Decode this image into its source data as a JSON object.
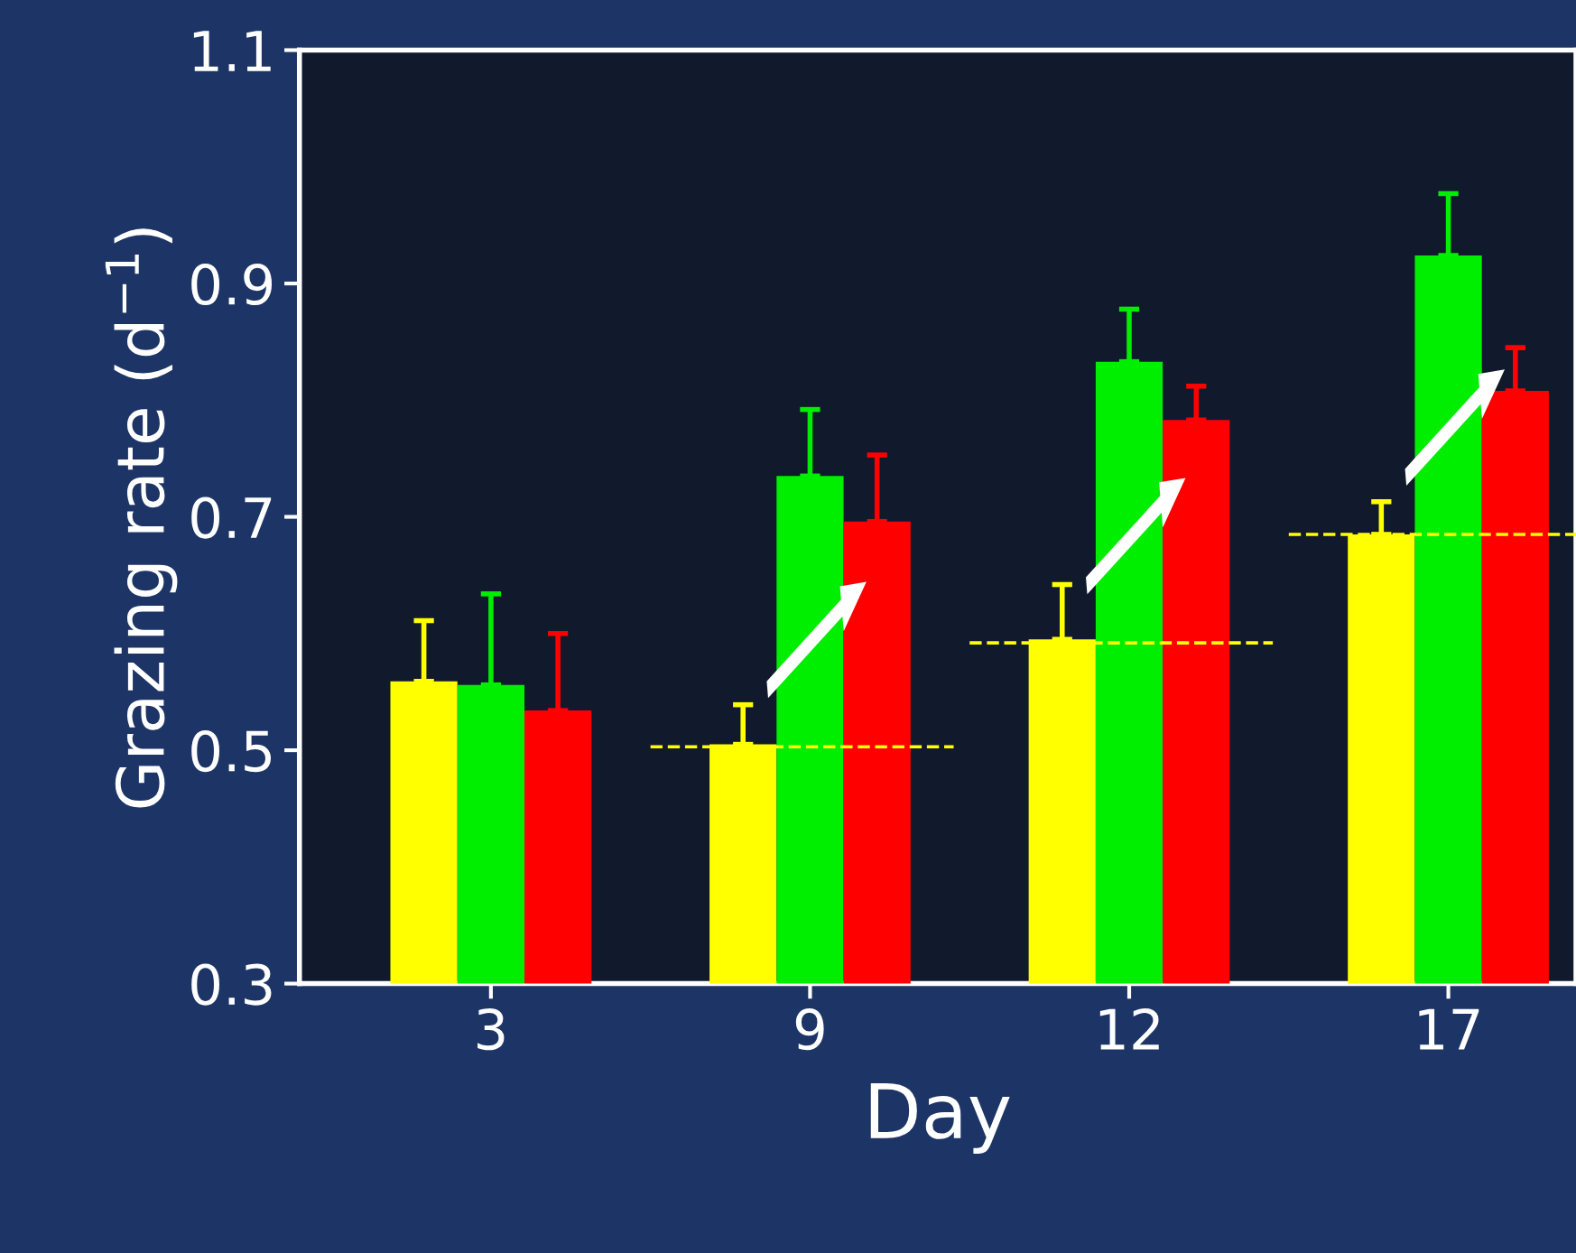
{
  "chart_data": {
    "type": "bar",
    "xlabel": "Day",
    "ylabel": "Grazing rate (d$^{−1}$)",
    "categories": [
      "3",
      "9",
      "12",
      "17"
    ],
    "series": [
      {
        "color": "#ffff00",
        "values": [
          0.559,
          0.505,
          0.595,
          0.685
        ],
        "errors": [
          0.052,
          0.034,
          0.047,
          0.028
        ]
      },
      {
        "color": "#00ee00",
        "values": [
          0.556,
          0.735,
          0.833,
          0.924
        ],
        "errors": [
          0.078,
          0.057,
          0.045,
          0.053
        ]
      },
      {
        "color": "#ff0000",
        "values": [
          0.534,
          0.696,
          0.783,
          0.808
        ],
        "errors": [
          0.066,
          0.057,
          0.029,
          0.037
        ]
      }
    ],
    "ylim": [
      0.3,
      1.1
    ],
    "yticks": [
      0.3,
      0.5,
      0.7,
      0.9,
      1.1
    ],
    "ref_lines": [
      {
        "axis": "y",
        "value": 0.503,
        "color": "#ffff00",
        "line_style": "dashed"
      },
      {
        "axis": "y",
        "value": 0.592,
        "color": "#ffff00",
        "line_style": "dashed"
      },
      {
        "axis": "y",
        "value": 0.685,
        "color": "#ffff00",
        "line_style": "dashed"
      }
    ]
  }
}
